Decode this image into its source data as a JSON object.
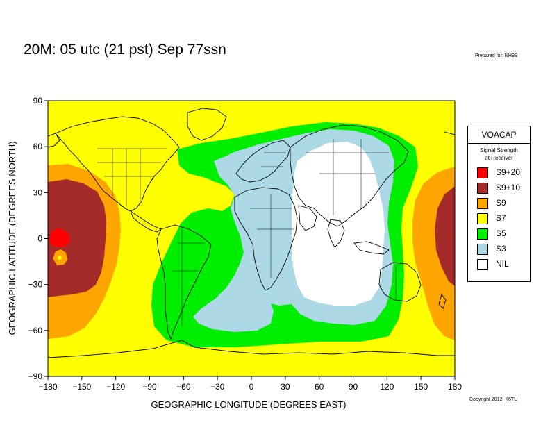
{
  "header": {
    "title": "20M:  05 utc (21 pst) Sep 77ssn",
    "prepared": "Prepared for: NH9S",
    "copyright": "Copyright 2012, K6TU"
  },
  "map": {
    "xlabel": "GEOGRAPHIC LONGITUDE (DEGREES EAST)",
    "ylabel": "GEOGRAPHIC LATITUDE (DEGREES NORTH)",
    "xlim": [
      -180,
      180
    ],
    "ylim": [
      -90,
      90
    ],
    "xticks": [
      "−180",
      "−150",
      "−120",
      "−90",
      "−60",
      "−30",
      "0",
      "30",
      "60",
      "90",
      "120",
      "150",
      "180"
    ],
    "yticks": [
      "90",
      "60",
      "30",
      "0",
      "−30",
      "−60",
      "−90"
    ],
    "colors": {
      "S9+20": "#ff0000",
      "S9+10": "#a52a2a",
      "S9": "#ffa500",
      "S7": "#ffff00",
      "S5": "#00ee00",
      "S3": "#add8e6",
      "NIL": "#ffffff"
    }
  },
  "legend": {
    "title": "VOACAP",
    "subtitle_line1": "Signal Strength",
    "subtitle_line2": "at Receiver",
    "items": [
      {
        "label": "S9+20",
        "color": "#ff0000"
      },
      {
        "label": "S9+10",
        "color": "#a52a2a"
      },
      {
        "label": "S9",
        "color": "#ffa500"
      },
      {
        "label": "S7",
        "color": "#ffff00"
      },
      {
        "label": "S5",
        "color": "#00ee00"
      },
      {
        "label": "S3",
        "color": "#add8e6"
      },
      {
        "label": "NIL",
        "color": "#ffffff"
      }
    ]
  }
}
